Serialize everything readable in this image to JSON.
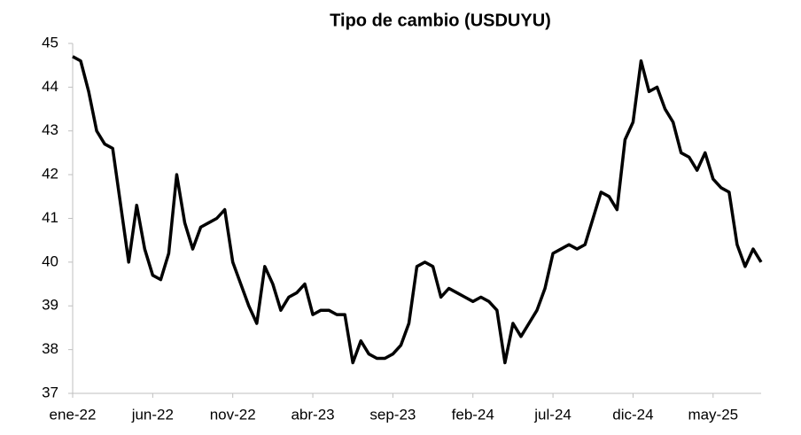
{
  "chart_data": {
    "type": "line",
    "title": "Tipo de cambio (USDUYU)",
    "categories": [
      "ene-22",
      null,
      null,
      null,
      null,
      null,
      null,
      null,
      null,
      null,
      "jun-22",
      null,
      null,
      null,
      null,
      null,
      null,
      null,
      null,
      null,
      "nov-22",
      null,
      null,
      null,
      null,
      null,
      null,
      null,
      null,
      null,
      "abr-23",
      null,
      null,
      null,
      null,
      null,
      null,
      null,
      null,
      null,
      "sep-23",
      null,
      null,
      null,
      null,
      null,
      null,
      null,
      null,
      null,
      "feb-24",
      null,
      null,
      null,
      null,
      null,
      null,
      null,
      null,
      null,
      "jul-24",
      null,
      null,
      null,
      null,
      null,
      null,
      null,
      null,
      null,
      "dic-24",
      null,
      null,
      null,
      null,
      null,
      null,
      null,
      null,
      null,
      "may-25",
      null,
      null,
      null,
      null,
      null,
      null
    ],
    "series": [
      {
        "name": "USDUYU",
        "color": "#000000",
        "values": [
          44.7,
          44.6,
          43.9,
          43.0,
          42.7,
          42.6,
          41.3,
          40.0,
          41.3,
          40.3,
          39.7,
          39.6,
          40.2,
          42.0,
          40.9,
          40.3,
          40.8,
          40.9,
          41.0,
          41.2,
          40.0,
          39.5,
          39.0,
          38.6,
          39.9,
          39.5,
          38.9,
          39.2,
          39.3,
          39.5,
          38.8,
          38.9,
          38.9,
          38.8,
          38.8,
          37.7,
          38.2,
          37.9,
          37.8,
          37.8,
          37.9,
          38.1,
          38.6,
          39.9,
          40.0,
          39.9,
          39.2,
          39.4,
          39.3,
          39.2,
          39.1,
          39.2,
          39.1,
          38.9,
          37.7,
          38.6,
          38.3,
          38.6,
          38.9,
          39.4,
          40.2,
          40.3,
          40.4,
          40.3,
          40.4,
          41.0,
          41.6,
          41.5,
          41.2,
          42.8,
          43.2,
          44.6,
          43.9,
          44.0,
          43.5,
          43.2,
          42.5,
          42.4,
          42.1,
          42.5,
          41.9,
          41.7,
          41.6,
          40.4,
          39.9,
          40.3,
          40.0
        ]
      }
    ],
    "ylim": [
      37,
      45
    ],
    "yticks": [
      37,
      38,
      39,
      40,
      41,
      42,
      43,
      44,
      45
    ]
  }
}
